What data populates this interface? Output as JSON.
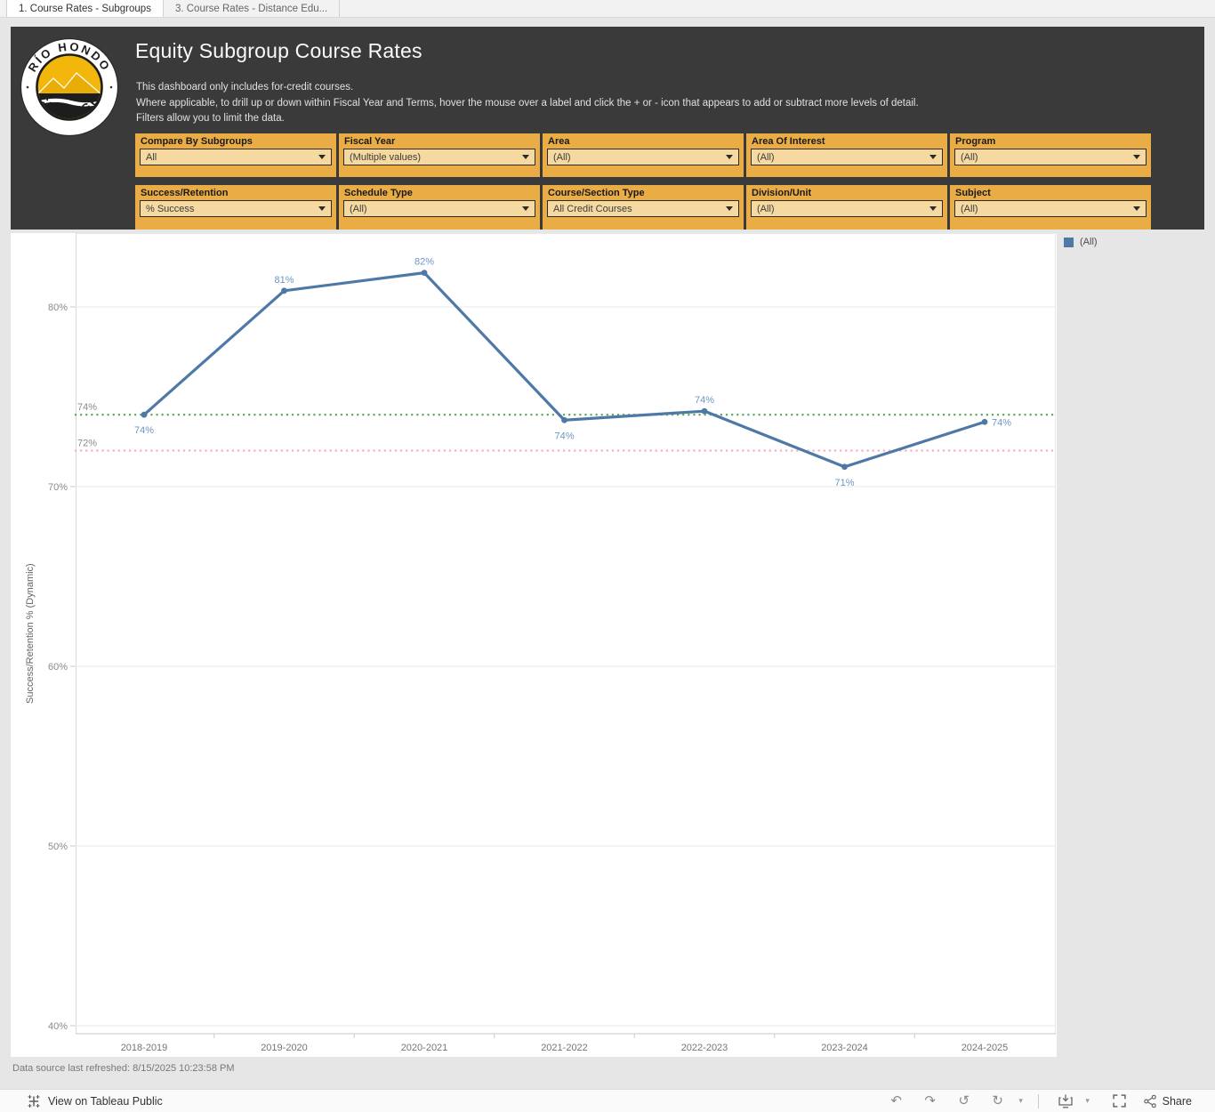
{
  "tabs": [
    {
      "label": "1. Course Rates - Subgroups",
      "active": true
    },
    {
      "label": "3. Course Rates - Distance Edu...",
      "active": false
    }
  ],
  "header": {
    "title": "Equity Subgroup Course Rates",
    "description_lines": [
      "This dashboard only includes for-credit courses.",
      "Where applicable, to drill up or down within Fiscal Year and Terms, hover the mouse over a label and click the + or - icon that appears to add or subtract more levels of detail.",
      "Filters allow you to limit the data."
    ],
    "logo": {
      "top_text": "RÍO HONDO",
      "bottom_text": "COLLEGE"
    }
  },
  "filters": {
    "rows": [
      [
        {
          "label": "Compare By Subgroups",
          "value": "All"
        },
        {
          "label": "Fiscal Year",
          "value": "(Multiple values)"
        },
        {
          "label": "Area",
          "value": "(All)"
        },
        {
          "label": "Area Of Interest",
          "value": "(All)"
        },
        {
          "label": "Program",
          "value": "(All)"
        }
      ],
      [
        {
          "label": "Success/Retention",
          "value": "% Success"
        },
        {
          "label": "Schedule Type",
          "value": "(All)"
        },
        {
          "label": "Course/Section Type",
          "value": "All Credit Courses"
        },
        {
          "label": "Division/Unit",
          "value": "(All)"
        },
        {
          "label": "Subject",
          "value": "(All)"
        }
      ]
    ]
  },
  "chart_data": {
    "type": "line",
    "categories": [
      "2018-2019",
      "2019-2020",
      "2020-2021",
      "2021-2022",
      "2022-2023",
      "2023-2024",
      "2024-2025"
    ],
    "series": [
      {
        "name": "(All)",
        "color": "#4e79a7",
        "values": [
          74,
          81,
          82,
          74,
          74,
          71,
          74
        ],
        "values_precise": [
          74.0,
          80.9,
          81.9,
          73.7,
          74.2,
          71.1,
          73.6
        ],
        "labels": [
          "74%",
          "81%",
          "82%",
          "74%",
          "74%",
          "71%",
          "74%"
        ],
        "label_positions": [
          "below",
          "above",
          "above",
          "below",
          "above",
          "below",
          "right"
        ]
      }
    ],
    "ylabel": "Success/Retention % (Dynamic)",
    "ylim": [
      40,
      84.1
    ],
    "yticks": [
      40,
      50,
      60,
      70,
      80
    ],
    "ytick_labels": [
      "40%",
      "50%",
      "60%",
      "70%",
      "80%"
    ],
    "reference_lines": [
      {
        "value": 74,
        "label": "74%",
        "color": "#5BA85B",
        "style": "dotted"
      },
      {
        "value": 72,
        "label": "72%",
        "color": "#F4A9C4",
        "style": "dotted"
      }
    ],
    "grid": "horizontal",
    "legend_position": "top-right",
    "label_color": "#6e95c5",
    "tick_color": "#8a8a8a",
    "xlabel_color": "#757575"
  },
  "legend": {
    "items": [
      {
        "label": "(All)",
        "color": "#4e79a7"
      }
    ]
  },
  "footer": {
    "refresh_text": "Data source last refreshed: 8/15/2025 10:23:58 PM"
  },
  "toolbar": {
    "view_on_label": "View on Tableau Public",
    "share_label": "Share",
    "icons": [
      "undo",
      "redo",
      "revert",
      "refresh",
      "download",
      "fullscreen",
      "share"
    ]
  },
  "colors": {
    "header_bg": "#3a3a3a",
    "filter_bg": "#EAAC45",
    "filter_field_bg": "#F5D9A0",
    "series_blue": "#4e79a7",
    "ref_green": "#5BA85B",
    "ref_pink": "#F4A9C4",
    "page_bg": "#e6e6e6"
  }
}
